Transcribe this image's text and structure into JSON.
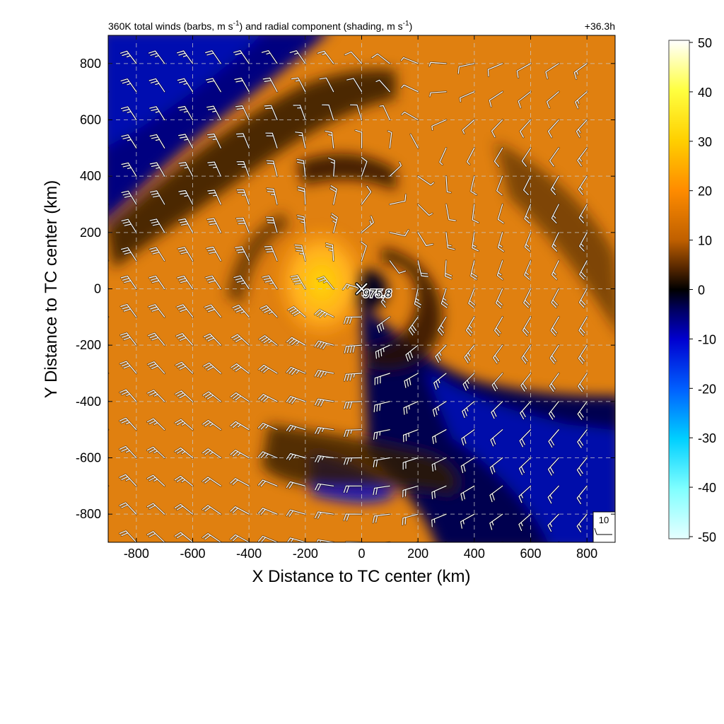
{
  "chart_data": {
    "type": "heatmap",
    "title": {
      "left": {
        "main": "360K total winds (barbs, m s",
        "sup1": "-1",
        "mid": ") and radial component (shading, m s",
        "sup2": "-1",
        "end": ")"
      },
      "right": "+36.3h"
    },
    "xlabel": "X Distance to TC center (km)",
    "ylabel": "Y Distance to TC center (km)",
    "xlim": [
      -900,
      900
    ],
    "ylim": [
      -900,
      900
    ],
    "xticks": [
      -800,
      -600,
      -400,
      -200,
      0,
      200,
      400,
      600,
      800
    ],
    "yticks": [
      -800,
      -600,
      -400,
      -200,
      0,
      200,
      400,
      600,
      800
    ],
    "xtick_labels": [
      "-800",
      "-600",
      "-400",
      "-200",
      "0",
      "200",
      "400",
      "600",
      "800"
    ],
    "ytick_labels": [
      "-800",
      "-600",
      "-400",
      "-200",
      "0",
      "200",
      "400",
      "600",
      "800"
    ],
    "grid": true,
    "center_marker": {
      "x": 0,
      "y": 0,
      "label": "975.8"
    },
    "barb_grid": {
      "start": -900,
      "step": 100,
      "count": 18
    },
    "reference_barb": {
      "label": "10"
    },
    "colorbar": {
      "range": [
        -50,
        50
      ],
      "ticks": [
        50,
        40,
        30,
        20,
        10,
        0,
        -10,
        -20,
        -30,
        -40,
        -50
      ],
      "tick_labels": [
        "50",
        "40",
        "30",
        "20",
        "10",
        "0",
        "-10",
        "-20",
        "-30",
        "-40",
        "-50"
      ],
      "stops": [
        {
          "v": -50,
          "c": "#e6ffff"
        },
        {
          "v": -40,
          "c": "#80ffff"
        },
        {
          "v": -30,
          "c": "#00d0ff"
        },
        {
          "v": -20,
          "c": "#0060ff"
        },
        {
          "v": -10,
          "c": "#0000d0"
        },
        {
          "v": -4,
          "c": "#000060"
        },
        {
          "v": 0,
          "c": "#000000"
        },
        {
          "v": 4,
          "c": "#502400"
        },
        {
          "v": 10,
          "c": "#c06000"
        },
        {
          "v": 20,
          "c": "#ff8c00"
        },
        {
          "v": 30,
          "c": "#ffd000"
        },
        {
          "v": 40,
          "c": "#ffff40"
        },
        {
          "v": 50,
          "c": "#ffffff"
        }
      ]
    }
  }
}
